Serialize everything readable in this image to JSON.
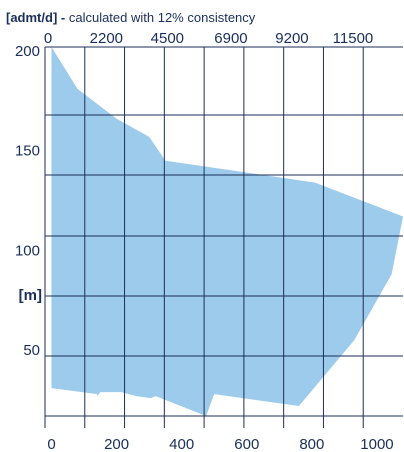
{
  "chart_data": {
    "type": "area",
    "title": {
      "unit": "[admt/d]",
      "separator": " - ",
      "text": "calculated with 12% consistency"
    },
    "ylabel": "[m]",
    "xlabel": "",
    "bottom_axis": {
      "range": [
        -20,
        1080
      ],
      "ticks": [
        0,
        200,
        400,
        600,
        800,
        1000
      ],
      "tick_labels": [
        "0",
        "200",
        "400",
        "600",
        "800",
        "1000"
      ]
    },
    "top_axis": {
      "unit": "admt/d",
      "ticks": [
        0,
        2200,
        4500,
        6900,
        9200,
        11500
      ],
      "tick_labels": [
        "0",
        "2200",
        "4500",
        "6900",
        "9200",
        "11500"
      ]
    },
    "y_axis": {
      "range": [
        15,
        202
      ],
      "ticks": [
        50,
        100,
        150,
        200
      ],
      "tick_labels": [
        "50",
        "100",
        "150",
        "200"
      ]
    },
    "grid": true,
    "fill_color": "#9ccbeb",
    "grid_color": "#1c2e57",
    "text_color": "#1a2f5c",
    "series": [
      {
        "points": [
          [
            0,
            202
          ],
          [
            80,
            181
          ],
          [
            200,
            166
          ],
          [
            300,
            157
          ],
          [
            350,
            145
          ],
          [
            810,
            134
          ],
          [
            1080,
            117
          ],
          [
            1045,
            88
          ],
          [
            930,
            55
          ],
          [
            760,
            22
          ],
          [
            500,
            28
          ],
          [
            475,
            17
          ],
          [
            320,
            27
          ],
          [
            305,
            26
          ],
          [
            260,
            27
          ],
          [
            215,
            29
          ],
          [
            150,
            29
          ],
          [
            140,
            27
          ],
          [
            140,
            28
          ],
          [
            0,
            31
          ]
        ]
      }
    ]
  }
}
